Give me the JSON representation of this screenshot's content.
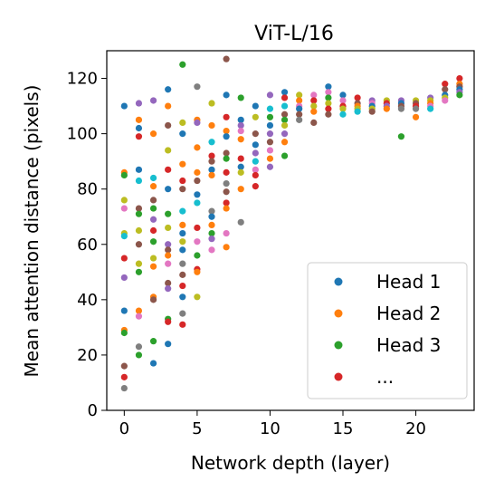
{
  "chart_data": {
    "type": "scatter",
    "title": "ViT-L/16",
    "xlabel": "Network depth (layer)",
    "ylabel": "Mean attention distance (pixels)",
    "xlim": [
      -1.2,
      24.0
    ],
    "ylim": [
      0,
      130
    ],
    "xticks": [
      0,
      5,
      10,
      15,
      20
    ],
    "yticks": [
      0,
      20,
      40,
      60,
      80,
      100,
      120
    ],
    "grid": false,
    "legend": {
      "placement": "bottom-right",
      "entries": [
        {
          "label": "Head 1",
          "color": "#1f77b4"
        },
        {
          "label": "Head 2",
          "color": "#ff7f0e"
        },
        {
          "label": "Head 3",
          "color": "#2ca02c"
        },
        {
          "label": "...",
          "color": "#d62728"
        }
      ]
    },
    "palette": [
      "#1f77b4",
      "#ff7f0e",
      "#2ca02c",
      "#d62728",
      "#9467bd",
      "#8c564b",
      "#e377c2",
      "#7f7f7f",
      "#bcbd22",
      "#17becf"
    ],
    "points": [
      [
        0,
        110,
        0
      ],
      [
        0,
        86,
        1
      ],
      [
        0,
        85,
        2
      ],
      [
        0,
        55,
        3
      ],
      [
        0,
        36,
        0
      ],
      [
        0,
        29,
        1
      ],
      [
        0,
        28,
        2
      ],
      [
        0,
        16,
        5
      ],
      [
        0,
        12,
        3
      ],
      [
        0,
        8,
        7
      ],
      [
        0,
        48,
        4
      ],
      [
        0,
        64,
        8
      ],
      [
        0,
        63,
        9
      ],
      [
        0,
        73,
        6
      ],
      [
        0,
        76,
        8
      ],
      [
        1,
        111,
        4
      ],
      [
        1,
        105,
        1
      ],
      [
        1,
        102,
        0
      ],
      [
        1,
        99,
        3
      ],
      [
        1,
        87,
        0
      ],
      [
        1,
        83,
        9
      ],
      [
        1,
        73,
        5
      ],
      [
        1,
        71,
        2
      ],
      [
        1,
        65,
        8
      ],
      [
        1,
        60,
        5
      ],
      [
        1,
        50,
        2
      ],
      [
        1,
        53,
        8
      ],
      [
        1,
        36,
        1
      ],
      [
        1,
        34,
        6
      ],
      [
        1,
        23,
        7
      ],
      [
        1,
        20,
        2
      ],
      [
        2,
        112,
        4
      ],
      [
        2,
        100,
        1
      ],
      [
        2,
        84,
        9
      ],
      [
        2,
        81,
        1
      ],
      [
        2,
        76,
        5
      ],
      [
        2,
        73,
        2
      ],
      [
        2,
        69,
        4
      ],
      [
        2,
        65,
        3
      ],
      [
        2,
        61,
        2
      ],
      [
        2,
        55,
        8
      ],
      [
        2,
        52,
        1
      ],
      [
        2,
        41,
        1
      ],
      [
        2,
        40,
        5
      ],
      [
        2,
        25,
        2
      ],
      [
        2,
        17,
        0
      ],
      [
        3,
        116,
        0
      ],
      [
        3,
        110,
        1
      ],
      [
        3,
        103,
        5
      ],
      [
        3,
        94,
        8
      ],
      [
        3,
        87,
        3
      ],
      [
        3,
        80,
        0
      ],
      [
        3,
        71,
        2
      ],
      [
        3,
        66,
        8
      ],
      [
        3,
        60,
        4
      ],
      [
        3,
        58,
        5
      ],
      [
        3,
        56,
        1
      ],
      [
        3,
        53,
        6
      ],
      [
        3,
        46,
        5
      ],
      [
        3,
        44,
        4
      ],
      [
        3,
        33,
        2
      ],
      [
        3,
        32,
        3
      ],
      [
        3,
        24,
        0
      ],
      [
        4,
        125,
        2
      ],
      [
        4,
        104,
        8
      ],
      [
        4,
        100,
        0
      ],
      [
        4,
        89,
        1
      ],
      [
        4,
        83,
        3
      ],
      [
        4,
        80,
        5
      ],
      [
        4,
        72,
        9
      ],
      [
        4,
        67,
        1
      ],
      [
        4,
        64,
        0
      ],
      [
        4,
        61,
        8
      ],
      [
        4,
        58,
        0
      ],
      [
        4,
        53,
        7
      ],
      [
        4,
        49,
        5
      ],
      [
        4,
        45,
        3
      ],
      [
        4,
        41,
        0
      ],
      [
        4,
        35,
        7
      ],
      [
        4,
        31,
        3
      ],
      [
        5,
        117,
        7
      ],
      [
        5,
        105,
        1
      ],
      [
        5,
        104,
        4
      ],
      [
        5,
        95,
        1
      ],
      [
        5,
        86,
        1
      ],
      [
        5,
        83,
        5
      ],
      [
        5,
        78,
        0
      ],
      [
        5,
        75,
        9
      ],
      [
        5,
        66,
        3
      ],
      [
        5,
        61,
        6
      ],
      [
        5,
        56,
        2
      ],
      [
        5,
        51,
        3
      ],
      [
        5,
        50,
        1
      ],
      [
        5,
        41,
        8
      ],
      [
        6,
        111,
        8
      ],
      [
        6,
        103,
        1
      ],
      [
        6,
        97,
        9
      ],
      [
        6,
        92,
        3
      ],
      [
        6,
        90,
        5
      ],
      [
        6,
        87,
        0
      ],
      [
        6,
        85,
        1
      ],
      [
        6,
        72,
        7
      ],
      [
        6,
        70,
        0
      ],
      [
        6,
        67,
        1
      ],
      [
        6,
        64,
        2
      ],
      [
        6,
        62,
        4
      ],
      [
        6,
        58,
        6
      ],
      [
        7,
        127,
        5
      ],
      [
        7,
        114,
        0
      ],
      [
        7,
        106,
        3
      ],
      [
        7,
        101,
        1
      ],
      [
        7,
        99,
        0
      ],
      [
        7,
        93,
        5
      ],
      [
        7,
        91,
        2
      ],
      [
        7,
        86,
        3
      ],
      [
        7,
        82,
        7
      ],
      [
        7,
        79,
        5
      ],
      [
        7,
        75,
        3
      ],
      [
        7,
        73,
        1
      ],
      [
        7,
        64,
        6
      ],
      [
        7,
        59,
        1
      ],
      [
        8,
        113,
        2
      ],
      [
        8,
        105,
        0
      ],
      [
        8,
        103,
        4
      ],
      [
        8,
        101,
        6
      ],
      [
        8,
        98,
        1
      ],
      [
        8,
        91,
        3
      ],
      [
        8,
        88,
        0
      ],
      [
        8,
        86,
        8
      ],
      [
        8,
        80,
        1
      ],
      [
        8,
        68,
        7
      ],
      [
        9,
        110,
        0
      ],
      [
        9,
        106,
        8
      ],
      [
        9,
        100,
        5
      ],
      [
        9,
        96,
        0
      ],
      [
        9,
        93,
        4
      ],
      [
        9,
        90,
        9
      ],
      [
        9,
        87,
        6
      ],
      [
        9,
        85,
        3
      ],
      [
        9,
        81,
        3
      ],
      [
        10,
        114,
        4
      ],
      [
        10,
        109,
        9
      ],
      [
        10,
        106,
        2
      ],
      [
        10,
        103,
        0
      ],
      [
        10,
        100,
        4
      ],
      [
        10,
        97,
        5
      ],
      [
        10,
        94,
        6
      ],
      [
        10,
        91,
        1
      ],
      [
        10,
        88,
        4
      ],
      [
        11,
        115,
        0
      ],
      [
        11,
        113,
        3
      ],
      [
        11,
        110,
        9
      ],
      [
        11,
        107,
        5
      ],
      [
        11,
        105,
        2
      ],
      [
        11,
        103,
        8
      ],
      [
        11,
        100,
        4
      ],
      [
        11,
        97,
        1
      ],
      [
        11,
        92,
        2
      ],
      [
        12,
        114,
        8
      ],
      [
        12,
        112,
        1
      ],
      [
        12,
        110,
        6
      ],
      [
        12,
        109,
        0
      ],
      [
        12,
        107,
        5
      ],
      [
        12,
        105,
        7
      ],
      [
        13,
        114,
        6
      ],
      [
        13,
        112,
        3
      ],
      [
        13,
        110,
        8
      ],
      [
        13,
        108,
        1
      ],
      [
        13,
        104,
        5
      ],
      [
        14,
        117,
        0
      ],
      [
        14,
        115,
        6
      ],
      [
        14,
        113,
        2
      ],
      [
        14,
        111,
        8
      ],
      [
        14,
        109,
        3
      ],
      [
        14,
        107,
        5
      ],
      [
        15,
        114,
        0
      ],
      [
        15,
        112,
        6
      ],
      [
        15,
        110,
        3
      ],
      [
        15,
        109,
        8
      ],
      [
        15,
        107,
        9
      ],
      [
        16,
        113,
        3
      ],
      [
        16,
        111,
        5
      ],
      [
        16,
        110,
        1
      ],
      [
        16,
        109,
        8
      ],
      [
        16,
        108,
        9
      ],
      [
        17,
        112,
        4
      ],
      [
        17,
        111,
        6
      ],
      [
        17,
        110,
        0
      ],
      [
        17,
        109,
        8
      ],
      [
        17,
        108,
        5
      ],
      [
        18,
        112,
        8
      ],
      [
        18,
        111,
        3
      ],
      [
        18,
        110,
        4
      ],
      [
        18,
        109,
        1
      ],
      [
        19,
        112,
        4
      ],
      [
        19,
        111,
        0
      ],
      [
        19,
        110,
        5
      ],
      [
        19,
        109,
        7
      ],
      [
        19,
        99,
        2
      ],
      [
        20,
        112,
        8
      ],
      [
        20,
        111,
        5
      ],
      [
        20,
        110,
        3
      ],
      [
        20,
        109,
        7
      ],
      [
        20,
        106,
        1
      ],
      [
        21,
        113,
        4
      ],
      [
        21,
        112,
        8
      ],
      [
        21,
        111,
        1
      ],
      [
        21,
        110,
        6
      ],
      [
        21,
        109,
        9
      ],
      [
        22,
        118,
        3
      ],
      [
        22,
        116,
        5
      ],
      [
        22,
        114,
        0
      ],
      [
        22,
        113,
        8
      ],
      [
        22,
        112,
        6
      ],
      [
        23,
        120,
        3
      ],
      [
        23,
        118,
        1
      ],
      [
        23,
        117,
        5
      ],
      [
        23,
        116,
        0
      ],
      [
        23,
        115,
        4
      ],
      [
        23,
        114,
        2
      ]
    ]
  }
}
